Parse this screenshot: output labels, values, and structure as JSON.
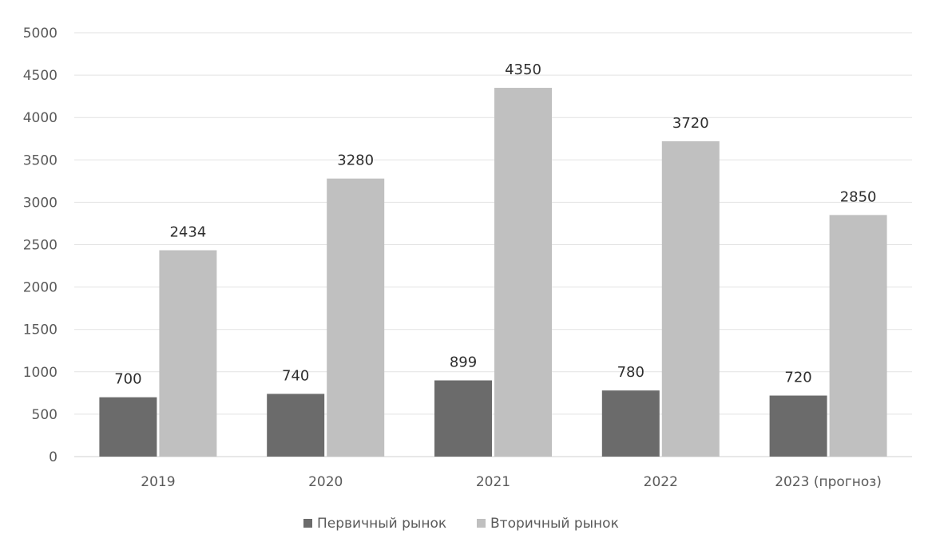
{
  "chart_data": {
    "type": "bar",
    "categories": [
      "2019",
      "2020",
      "2021",
      "2022",
      "2023 (прогноз)"
    ],
    "series": [
      {
        "name": "Первичный рынок",
        "values": [
          700,
          740,
          899,
          780,
          720
        ],
        "color": "#6b6b6b"
      },
      {
        "name": "Вторичный рынок",
        "values": [
          2434,
          3280,
          4350,
          3720,
          2850
        ],
        "color": "#c0c0c0"
      }
    ],
    "ylim": [
      0,
      5000
    ],
    "yticks": [
      0,
      500,
      1000,
      1500,
      2000,
      2500,
      3000,
      3500,
      4000,
      4500,
      5000
    ],
    "grid": true,
    "legend_position": "bottom",
    "data_labels": true
  }
}
